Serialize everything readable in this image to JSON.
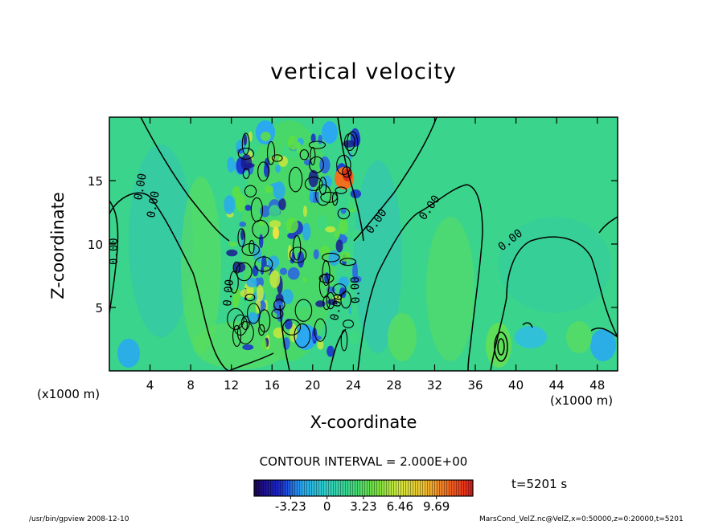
{
  "title": "vertical velocity",
  "chart_data": {
    "type": "heatmap",
    "title": "vertical velocity",
    "xlabel": "X-coordinate",
    "ylabel": "Z-coordinate",
    "x_unit": "(x1000 m)",
    "xlim": [
      0,
      50
    ],
    "ylim": [
      0,
      20
    ],
    "x_ticks": [
      4,
      8,
      12,
      16,
      20,
      24,
      28,
      32,
      36,
      40,
      44,
      48
    ],
    "y_ticks": [
      5,
      10,
      15
    ],
    "contour_interval_label": "CONTOUR INTERVAL = 2.000E+00",
    "contour_labels": [
      "0.00",
      "0.00",
      "0.00",
      "0.00",
      "0.00",
      "0.00",
      "0.00",
      "0.00",
      "0.00"
    ],
    "colorbar_ticks": [
      "-3.23",
      "0",
      "3.23",
      "6.46",
      "9.69"
    ],
    "colorbar_range": [
      -6.46,
      12.92
    ],
    "time_label": "t=5201 s",
    "grid": false,
    "colors": {
      "background_field": "#3ad48c",
      "positive_weak": "#5fe05c",
      "negative_weak": "#30b8f0",
      "strong_negative": "#1a2ad0",
      "strong_positive": "#f07020"
    }
  },
  "footer": {
    "left": "/usr/bin/gpview   2008-12-10",
    "right": "MarsCond_VelZ.nc@VelZ,x=0:50000,z=0:20000,t=5201"
  }
}
